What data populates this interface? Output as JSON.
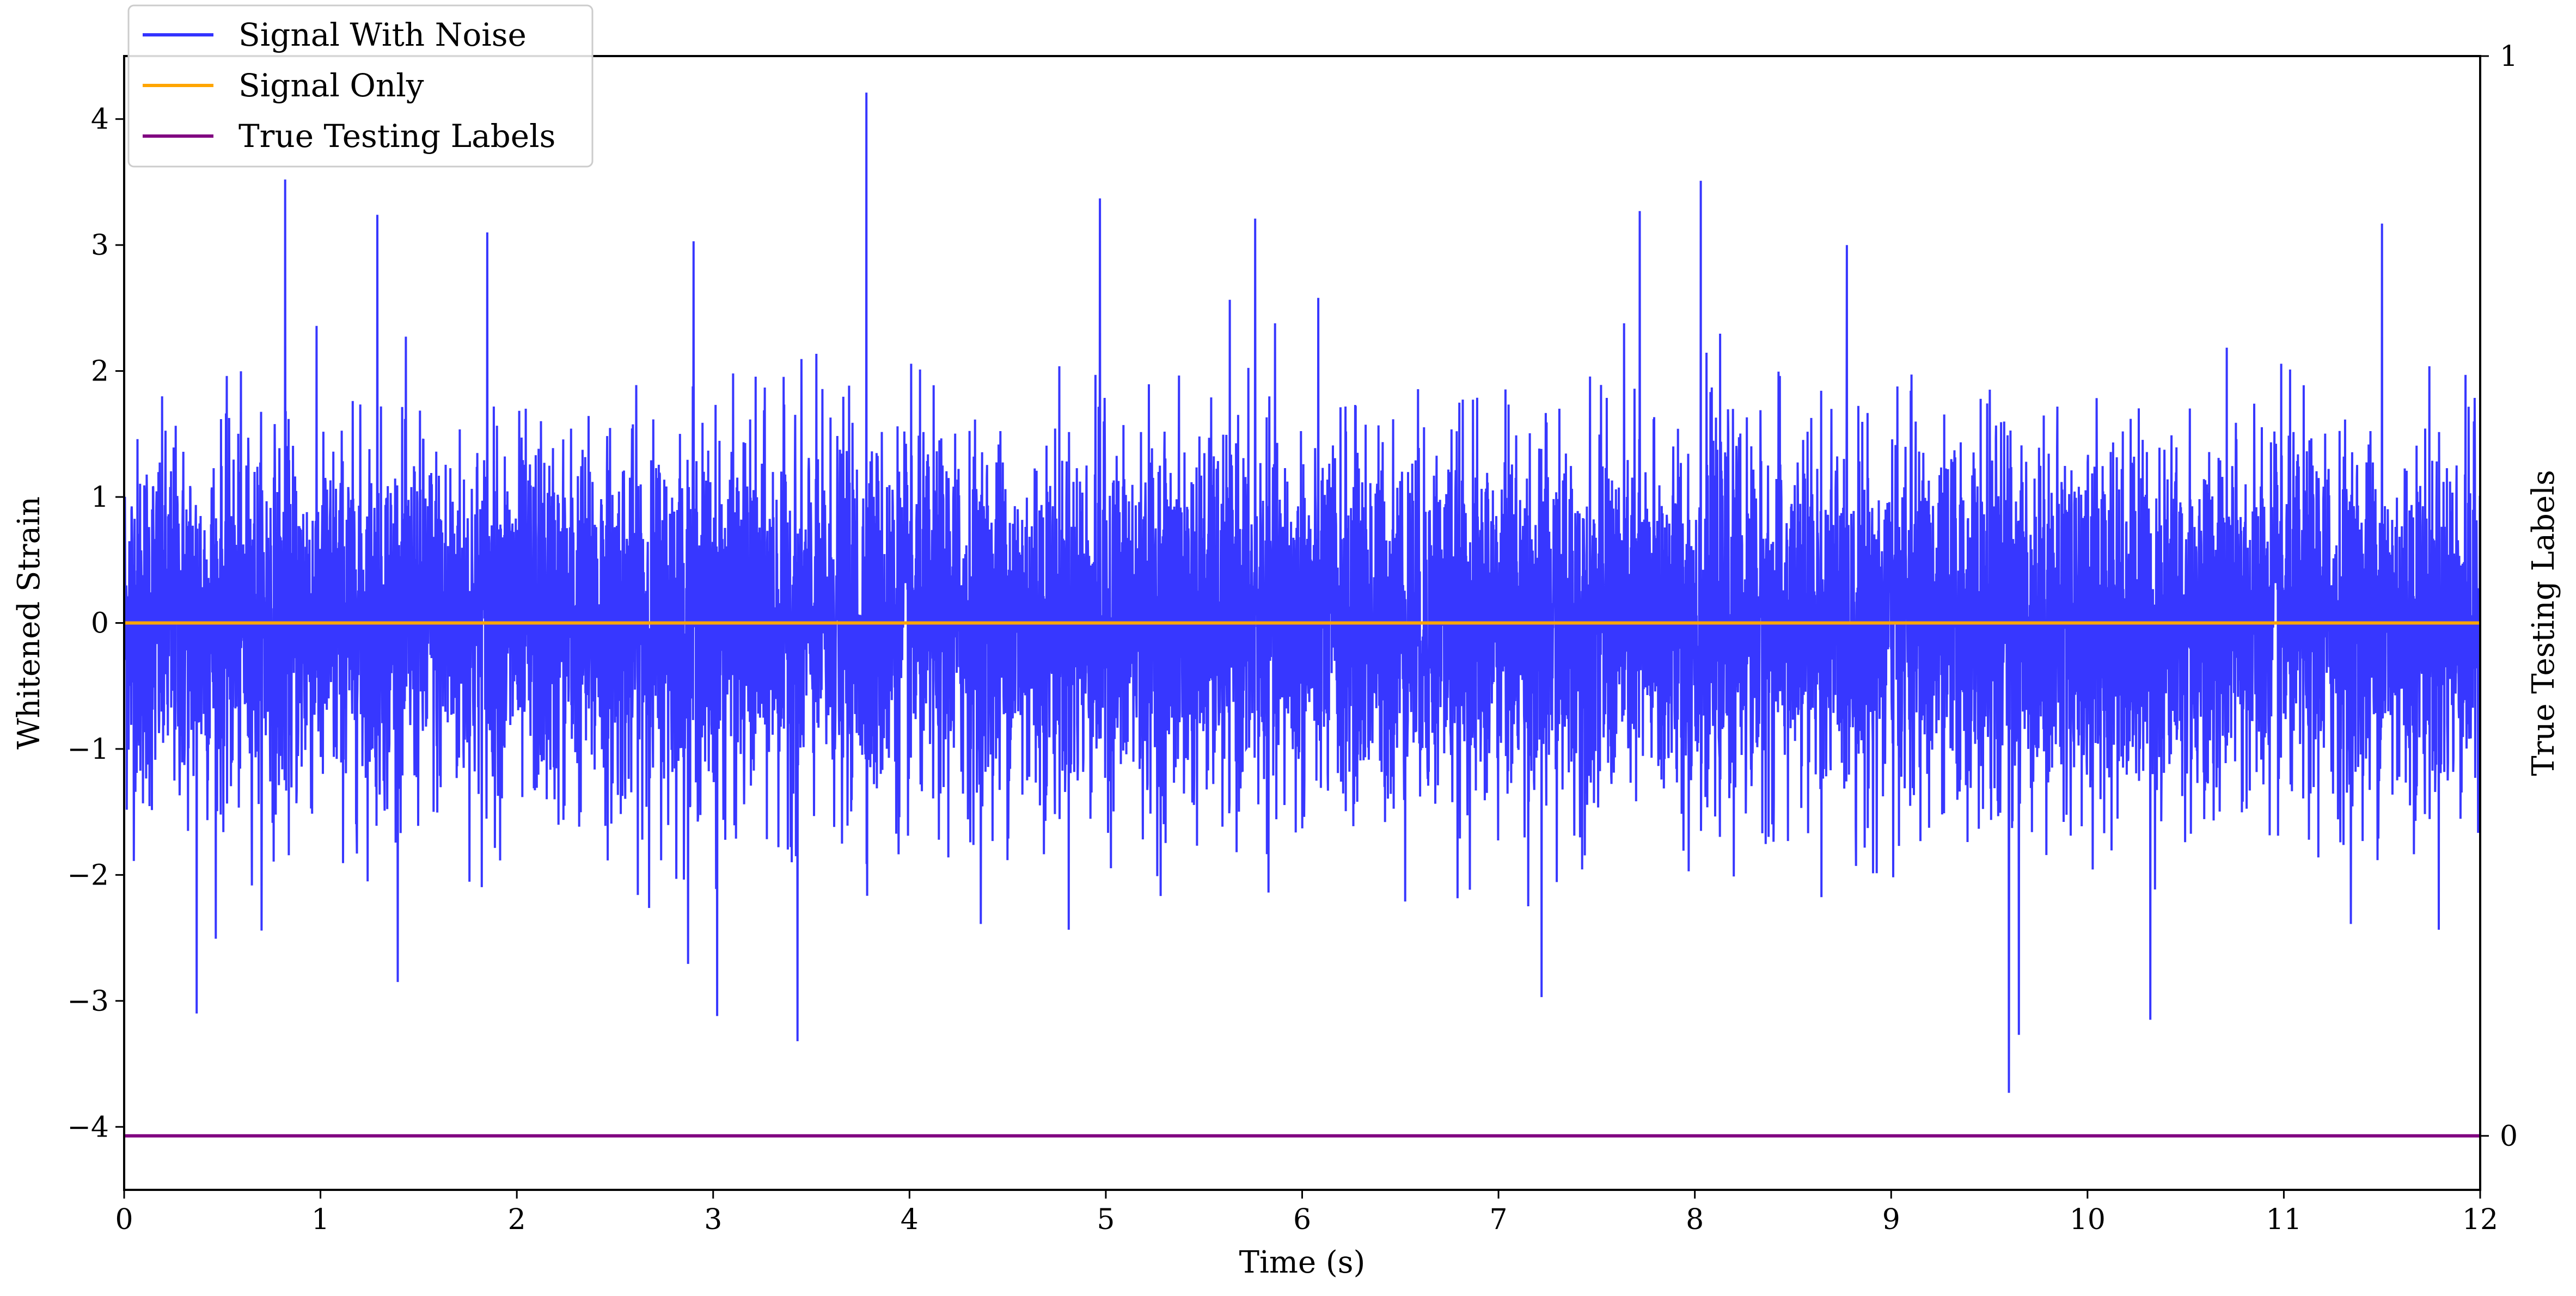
{
  "chart_data": {
    "type": "line",
    "xlabel": "Time (s)",
    "ylabel": "Whitened Strain",
    "y2label": "True Testing Labels",
    "xlim": [
      0,
      12
    ],
    "ylim": [
      -4.5,
      4.5
    ],
    "y2lim": [
      -0.05,
      1.0
    ],
    "grid": false,
    "legend_position": "top-left",
    "x_ticks": [
      "0",
      "1",
      "2",
      "3",
      "4",
      "5",
      "6",
      "7",
      "8",
      "9",
      "10",
      "11",
      "12"
    ],
    "y_ticks": [
      "−4",
      "−3",
      "−2",
      "−1",
      "0",
      "1",
      "2",
      "3",
      "4"
    ],
    "y2_ticks": [
      "0",
      "1"
    ],
    "series": [
      {
        "name": "Signal With Noise",
        "color": "#3333ff",
        "axis": "left",
        "envelope": {
          "typical_upper": 1.8,
          "typical_lower": -1.6,
          "peaks": [
            {
              "x": 0.82,
              "y": 3.52
            },
            {
              "x": 1.29,
              "y": 3.24
            },
            {
              "x": 1.85,
              "y": 3.1
            },
            {
              "x": 2.9,
              "y": 3.03
            },
            {
              "x": 3.43,
              "y": -3.32
            },
            {
              "x": 3.78,
              "y": 4.21
            },
            {
              "x": 4.97,
              "y": 3.37
            },
            {
              "x": 5.76,
              "y": 3.21
            },
            {
              "x": 7.72,
              "y": 3.27
            },
            {
              "x": 8.03,
              "y": 3.51
            },
            {
              "x": 9.6,
              "y": -3.73
            },
            {
              "x": 11.5,
              "y": 3.17
            },
            {
              "x": 0.37,
              "y": -3.1
            },
            {
              "x": 3.02,
              "y": -3.12
            },
            {
              "x": 7.22,
              "y": -2.97
            },
            {
              "x": 10.32,
              "y": -3.15
            },
            {
              "x": 9.65,
              "y": -3.27
            }
          ]
        }
      },
      {
        "name": "Signal Only",
        "color": "#ffa500",
        "axis": "left",
        "x": [
          0,
          12
        ],
        "values": [
          0,
          0
        ]
      },
      {
        "name": "True Testing Labels",
        "color": "#800080",
        "axis": "right",
        "x": [
          0,
          12
        ],
        "values": [
          0,
          0
        ]
      }
    ]
  }
}
